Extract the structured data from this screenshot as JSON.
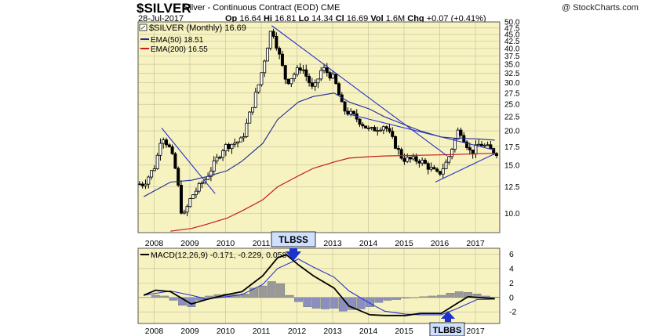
{
  "header": {
    "symbol": "$SILVER",
    "subtitle": "Silver - Continuous Contract (EOD) CME",
    "watermark": "@ StockCharts.com",
    "date": "28-Jul-2017",
    "open_label": "Op",
    "open": "16.64",
    "high_label": "Hi",
    "high": "16.81",
    "low_label": "Lo",
    "low": "14.34",
    "close_label": "Cl",
    "close": "16.69",
    "vol_label": "Vol",
    "vol": "1.6M",
    "chg_label": "Chg",
    "chg": "+0.07 (+0.41%)"
  },
  "colors": {
    "panel_bg": "#f7f3c0",
    "ema50": "#1f2a99",
    "ema200": "#c8191e",
    "trendline": "#2233cc",
    "macd_line": "#000000",
    "signal_line": "#2233cc",
    "histogram": "#8a8fc0",
    "histogram_up": "#999999",
    "annotation_bg": "#cfe0ff",
    "arrow": "#1a33cc"
  },
  "chart_data": [
    {
      "type": "candlestick",
      "title": "$SILVER (Monthly) 16.69",
      "scale": "log",
      "ylim": [
        8.5,
        50
      ],
      "y_ticks": [
        "50.0",
        "47.5",
        "45.0",
        "42.5",
        "40.0",
        "37.5",
        "35.0",
        "32.5",
        "30.0",
        "27.5",
        "25.0",
        "22.5",
        "20.0",
        "17.5",
        "15.0",
        "12.5",
        "10.0"
      ],
      "x_ticks": [
        "2008",
        "2009",
        "2010",
        "2011",
        "2012",
        "2013",
        "2014",
        "2015",
        "2016",
        "2017"
      ],
      "series": [
        {
          "name": "$SILVER (Monthly) 16.69",
          "kind": "close",
          "x": [
            "2007-09",
            "2008-01",
            "2008-03",
            "2008-06",
            "2008-08",
            "2008-10",
            "2009-01",
            "2009-06",
            "2009-12",
            "2010-06",
            "2010-12",
            "2011-04",
            "2011-09",
            "2012-02",
            "2012-06",
            "2012-09",
            "2013-01",
            "2013-04",
            "2013-08",
            "2014-01",
            "2014-06",
            "2014-12",
            "2015-06",
            "2015-12",
            "2016-03",
            "2016-07",
            "2016-11",
            "2017-02",
            "2017-04",
            "2017-07"
          ],
          "values": [
            12.8,
            15.0,
            19.5,
            17.0,
            14.0,
            9.5,
            11.5,
            13.5,
            17.5,
            18.5,
            30.5,
            48.0,
            30.0,
            34.5,
            28.0,
            34.0,
            31.0,
            24.0,
            22.5,
            20.0,
            21.0,
            15.8,
            15.6,
            13.8,
            15.5,
            20.5,
            16.5,
            18.0,
            17.5,
            16.69
          ]
        },
        {
          "name": "EMA(50) 18.51",
          "kind": "ema",
          "x": [
            "2007-09",
            "2008-06",
            "2009-01",
            "2009-06",
            "2010-01",
            "2010-06",
            "2011-01",
            "2011-06",
            "2012-01",
            "2012-06",
            "2013-01",
            "2013-06",
            "2014-01",
            "2014-06",
            "2015-01",
            "2015-06",
            "2016-01",
            "2016-06",
            "2017-01",
            "2017-07"
          ],
          "values": [
            11.5,
            13.0,
            13.2,
            13.6,
            14.3,
            15.5,
            18.0,
            22.0,
            25.5,
            26.7,
            27.5,
            25.5,
            24.0,
            22.5,
            21.0,
            20.0,
            19.0,
            18.8,
            18.7,
            18.51
          ]
        },
        {
          "name": "EMA(200) 16.55",
          "kind": "ema",
          "x": [
            "2008-06",
            "2009-01",
            "2009-06",
            "2010-01",
            "2010-06",
            "2011-01",
            "2011-06",
            "2012-01",
            "2012-06",
            "2013-01",
            "2013-06",
            "2014-01",
            "2014-06",
            "2015-01",
            "2015-06",
            "2016-01",
            "2016-06",
            "2017-01",
            "2017-07"
          ],
          "values": [
            8.6,
            8.8,
            9.1,
            9.6,
            10.2,
            11.2,
            12.5,
            13.7,
            14.6,
            15.4,
            15.9,
            16.1,
            16.2,
            16.25,
            16.3,
            16.35,
            16.4,
            16.5,
            16.55
          ]
        }
      ]
    },
    {
      "type": "line",
      "title": "MACD(12,26,9) -0.171, -0.229, 0.058",
      "ylim": [
        -3.6,
        6.8
      ],
      "y_ticks": [
        "6",
        "4",
        "2",
        "0",
        "-2"
      ],
      "x_ticks": [
        "2008",
        "2009",
        "2010",
        "2011",
        "2012",
        "2013",
        "2014",
        "2015",
        "2016",
        "2017"
      ],
      "series": [
        {
          "name": "MACD",
          "kind": "line",
          "x": [
            "2007-09",
            "2008-01",
            "2008-06",
            "2009-01",
            "2009-06",
            "2010-01",
            "2010-06",
            "2011-01",
            "2011-06",
            "2011-09",
            "2012-01",
            "2012-06",
            "2013-01",
            "2013-06",
            "2014-01",
            "2014-06",
            "2015-01",
            "2015-06",
            "2016-01",
            "2016-06",
            "2016-10",
            "2017-01",
            "2017-07"
          ],
          "values": [
            0.3,
            1.0,
            0.8,
            -0.9,
            -0.3,
            0.4,
            0.8,
            3.0,
            5.5,
            5.9,
            4.5,
            3.0,
            1.3,
            -1.2,
            -2.4,
            -2.5,
            -2.5,
            -2.2,
            -2.2,
            -0.9,
            0.1,
            0.0,
            -0.171
          ]
        },
        {
          "name": "Signal",
          "kind": "line",
          "x": [
            "2007-09",
            "2008-06",
            "2009-01",
            "2009-06",
            "2010-01",
            "2010-06",
            "2011-01",
            "2011-06",
            "2012-01",
            "2012-06",
            "2013-01",
            "2013-06",
            "2014-01",
            "2014-06",
            "2015-01",
            "2015-06",
            "2016-01",
            "2016-06",
            "2017-01",
            "2017-07"
          ],
          "values": [
            0.3,
            0.9,
            0.3,
            -0.2,
            0.1,
            0.4,
            1.8,
            4.0,
            5.3,
            4.2,
            2.8,
            0.9,
            -0.8,
            -1.9,
            -2.3,
            -2.4,
            -2.4,
            -1.6,
            -0.3,
            -0.229
          ]
        },
        {
          "name": "Histogram",
          "kind": "bar",
          "x": [
            "2008-01",
            "2008-04",
            "2008-07",
            "2008-10",
            "2009-01",
            "2009-04",
            "2009-07",
            "2009-10",
            "2010-01",
            "2010-04",
            "2010-07",
            "2010-10",
            "2011-01",
            "2011-04",
            "2011-07",
            "2011-10",
            "2012-01",
            "2012-04",
            "2012-07",
            "2012-10",
            "2013-01",
            "2013-04",
            "2013-07",
            "2013-10",
            "2014-01",
            "2014-04",
            "2014-07",
            "2014-10",
            "2015-01",
            "2015-04",
            "2015-07",
            "2015-10",
            "2016-01",
            "2016-04",
            "2016-07",
            "2016-10",
            "2017-01",
            "2017-04",
            "2017-07"
          ],
          "values": [
            0.3,
            0.2,
            -0.4,
            -1.1,
            -1.3,
            -0.4,
            0.2,
            0.4,
            0.5,
            0.4,
            0.5,
            1.3,
            1.6,
            2.2,
            1.9,
            0.3,
            -0.6,
            -1.3,
            -1.5,
            -1.6,
            -1.5,
            -1.9,
            -1.7,
            -1.6,
            -1.3,
            -0.7,
            -0.4,
            -0.3,
            -0.1,
            0.0,
            0.1,
            0.2,
            0.3,
            0.6,
            0.8,
            0.7,
            0.5,
            0.2,
            0.058
          ]
        }
      ]
    }
  ],
  "legend": {
    "price": "$SILVER (Monthly) 16.69",
    "ema50": "EMA(50) 18.51",
    "ema200": "EMA(200) 16.55",
    "macd": "MACD(12,26,9) -0.171, -0.229, 0.058"
  },
  "annotations": {
    "top": "TLBSS",
    "bottom": "TLBBS"
  }
}
